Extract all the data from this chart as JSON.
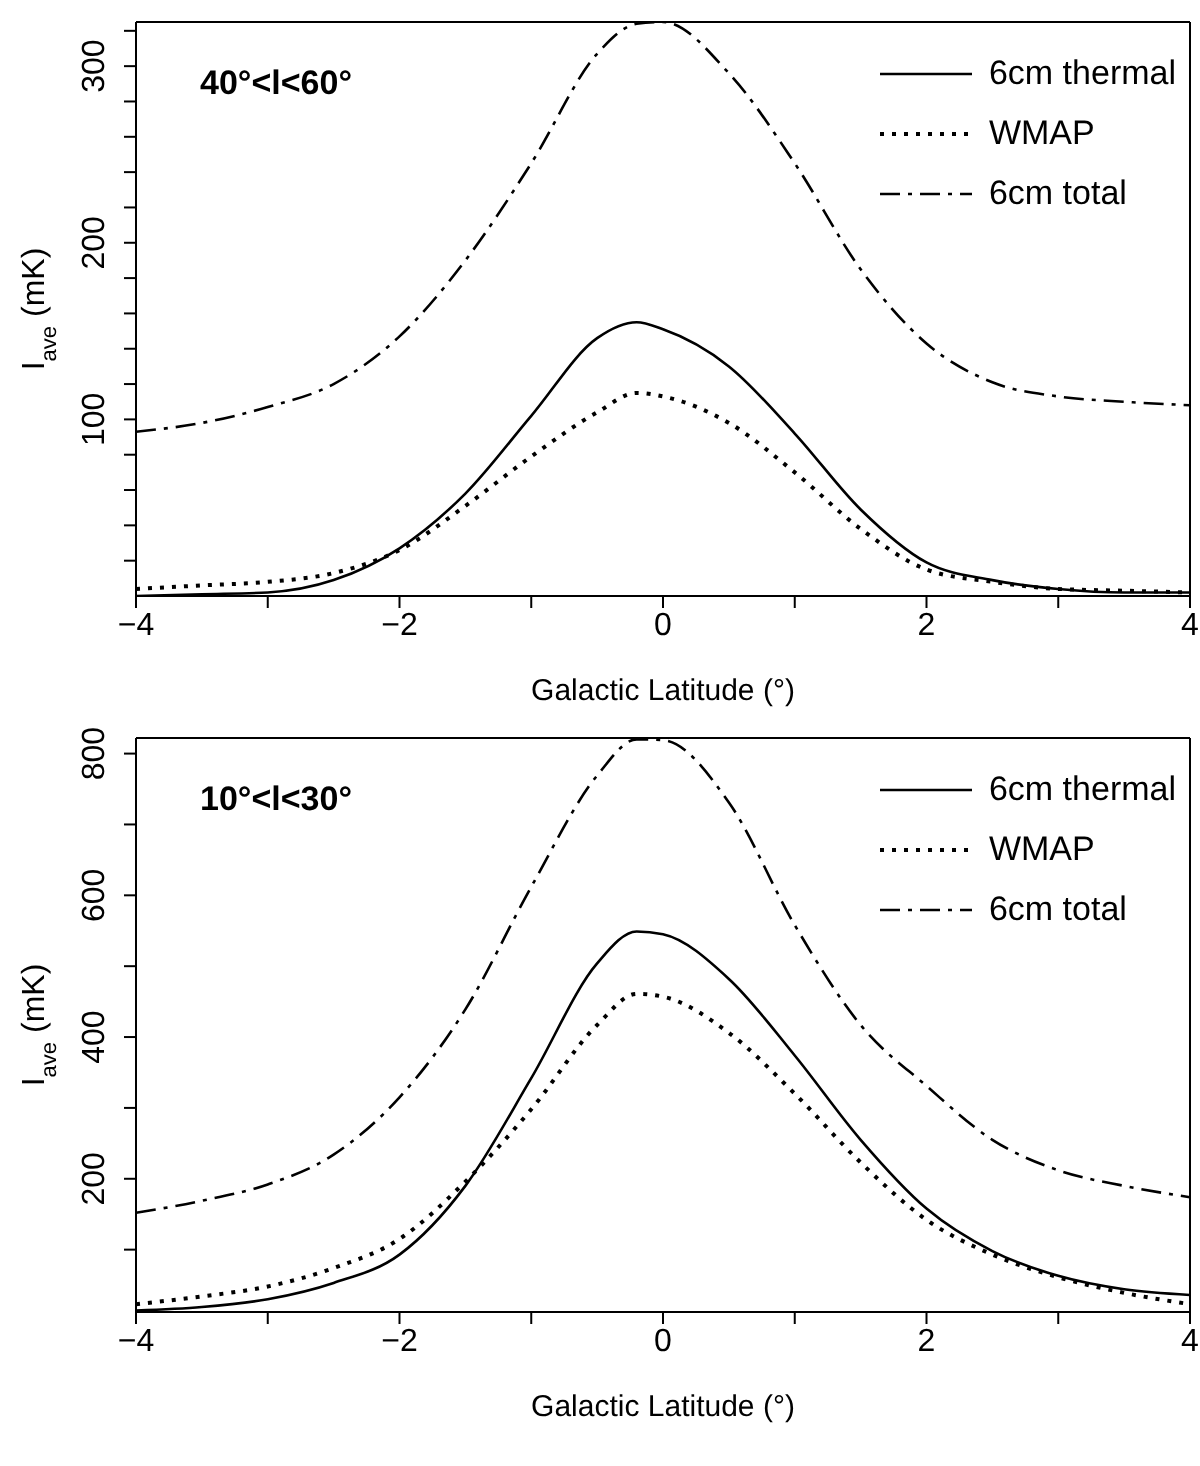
{
  "chart_data": [
    {
      "type": "line",
      "xlabel": "Galactic Latitude (°)",
      "ylabel": "I$_{ave}$ (mK)",
      "annotations": [
        "40°<l<60°"
      ],
      "legend": "top right",
      "grid": false,
      "marker": "none",
      "x": [
        -4,
        -3.5,
        -3,
        -2.5,
        -2,
        -1.5,
        -1,
        -0.5,
        -0.2,
        0,
        0.5,
        1,
        1.5,
        2,
        2.5,
        3,
        3.5,
        4
      ],
      "xlim": [
        -4,
        4
      ],
      "xticks": [
        -4,
        {
          "value": -3,
          "label": null
        },
        -2,
        {
          "value": -1,
          "label": null
        },
        0,
        {
          "value": 1,
          "label": null
        },
        2,
        {
          "value": 3,
          "label": null
        },
        4
      ],
      "ylim": [
        0,
        325
      ],
      "yticks": [
        {
          "value": 20,
          "label": null
        },
        {
          "value": 40,
          "label": null
        },
        {
          "value": 60,
          "label": null
        },
        {
          "value": 80,
          "label": null
        },
        100,
        {
          "value": 120,
          "label": null
        },
        {
          "value": 140,
          "label": null
        },
        {
          "value": 160,
          "label": null
        },
        {
          "value": 180,
          "label": null
        },
        200,
        {
          "value": 220,
          "label": null
        },
        {
          "value": 240,
          "label": null
        },
        {
          "value": 260,
          "label": null
        },
        {
          "value": 280,
          "label": null
        },
        300,
        {
          "value": 320,
          "label": null
        }
      ],
      "series": [
        {
          "name": "6cm thermal",
          "color": "#000000",
          "line_style": "solid",
          "values": [
            0,
            1,
            2,
            9,
            27,
            58,
            102,
            146,
            155,
            151,
            130,
            92,
            49,
            19,
            9,
            4,
            2,
            2
          ]
        },
        {
          "name": "WMAP",
          "color": "#000000",
          "line_style": "dotted",
          "values": [
            4,
            6,
            8,
            13,
            26,
            51,
            79,
            104,
            115,
            113,
            98,
            70,
            38,
            15,
            8,
            4,
            3,
            2
          ]
        },
        {
          "name": "6cm total",
          "color": "#000000",
          "line_style": "dashed",
          "values": [
            93,
            98,
            107,
            120,
            147,
            190,
            245,
            307,
            324,
            325,
            296,
            245,
            185,
            143,
            121,
            113,
            110,
            108
          ]
        }
      ]
    },
    {
      "type": "line",
      "xlabel": "Galactic Latitude (°)",
      "ylabel": "I$_{ave}$ (mK)",
      "annotations": [
        "10°<l<30°"
      ],
      "legend": "top right",
      "grid": false,
      "marker": "none",
      "x": [
        -4,
        -3.5,
        -3,
        -2.5,
        -2,
        -1.5,
        -1,
        -0.5,
        -0.2,
        0,
        0.5,
        1,
        1.5,
        2,
        2.5,
        3,
        3.5,
        4
      ],
      "xlim": [
        -4,
        4
      ],
      "xticks": [
        -4,
        {
          "value": -3,
          "label": null
        },
        -2,
        {
          "value": -1,
          "label": null
        },
        0,
        {
          "value": 1,
          "label": null
        },
        2,
        {
          "value": 3,
          "label": null
        },
        4
      ],
      "ylim": [
        12,
        822
      ],
      "yticks": [
        {
          "value": 100,
          "label": null
        },
        200,
        {
          "value": 300,
          "label": null
        },
        400,
        {
          "value": 500,
          "label": null
        },
        600,
        {
          "value": 700,
          "label": null
        },
        800
      ],
      "series": [
        {
          "name": "6cm thermal",
          "color": "#000000",
          "line_style": "solid",
          "values": [
            14,
            19,
            30,
            53,
            93,
            190,
            342,
            504,
            549,
            545,
            482,
            374,
            255,
            158,
            98,
            63,
            44,
            36
          ]
        },
        {
          "name": "WMAP",
          "color": "#000000",
          "line_style": "dotted",
          "values": [
            23,
            34,
            48,
            74,
            115,
            196,
            298,
            417,
            461,
            457,
            406,
            320,
            223,
            142,
            93,
            61,
            39,
            23
          ]
        },
        {
          "name": "6cm total",
          "color": "#000000",
          "line_style": "dashed",
          "values": [
            152,
            169,
            192,
            234,
            315,
            439,
            612,
            769,
            820,
            819,
            731,
            558,
            417,
            331,
            255,
            212,
            190,
            174
          ]
        }
      ]
    }
  ]
}
